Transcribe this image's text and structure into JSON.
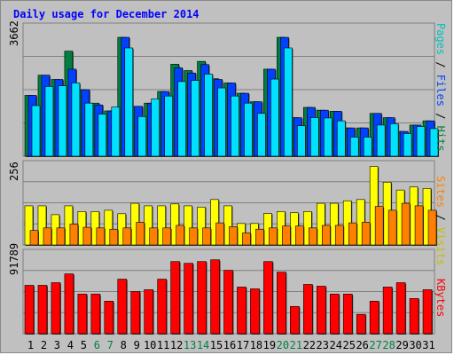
{
  "chart_data": {
    "type": "bar",
    "title": "Daily usage for December 2014",
    "categories": [
      "1",
      "2",
      "3",
      "4",
      "5",
      "6",
      "7",
      "8",
      "9",
      "10",
      "11",
      "12",
      "13",
      "14",
      "15",
      "16",
      "17",
      "18",
      "19",
      "20",
      "21",
      "22",
      "23",
      "24",
      "25",
      "26",
      "27",
      "28",
      "29",
      "30",
      "31"
    ],
    "weekend_days": [
      6,
      7,
      13,
      14,
      20,
      21,
      27,
      28
    ],
    "panels": {
      "top": {
        "max_label": "3662",
        "ymax": 3662,
        "legend": [
          "Pages",
          "/",
          "Files",
          "/",
          "Hits"
        ],
        "series": [
          {
            "name": "Hits",
            "color": "#008040",
            "values": [
              1720,
              2290,
              2170,
              2970,
              1880,
              1500,
              1280,
              3360,
              1410,
              1500,
              1830,
              2600,
              2420,
              2680,
              2190,
              2070,
              1780,
              1540,
              2460,
              3360,
              1090,
              1380,
              1300,
              1270,
              800,
              800,
              1210,
              1090,
              700,
              880,
              1000
            ]
          },
          {
            "name": "Files",
            "color": "#0040ff",
            "values": [
              1720,
              2290,
              2170,
              2460,
              1880,
              1450,
              1280,
              3360,
              1410,
              1500,
              1830,
              2500,
              2350,
              2590,
              2170,
              2070,
              1780,
              1540,
              2460,
              3360,
              1090,
              1380,
              1300,
              1270,
              800,
              800,
              1210,
              1090,
              700,
              880,
              1000
            ]
          },
          {
            "name": "Pages",
            "color": "#00e0ff",
            "values": [
              1430,
              1970,
              1990,
              2070,
              1500,
              1190,
              1390,
              3060,
              1120,
              1620,
              1700,
              2110,
              2140,
              2320,
              1930,
              1700,
              1500,
              1210,
              2180,
              3060,
              860,
              1090,
              1080,
              1000,
              540,
              540,
              880,
              920,
              640,
              840,
              780
            ]
          }
        ]
      },
      "middle": {
        "max_label": "256",
        "ymax": 256,
        "legend": [
          "Sites",
          "/",
          "Visits"
        ],
        "series": [
          {
            "name": "Visits",
            "color": "#ffff00",
            "values": [
              124,
              124,
              96,
              124,
              106,
              106,
              110,
              99,
              132,
              124,
              124,
              130,
              124,
              120,
              144,
              124,
              68,
              68,
              100,
              106,
              102,
              106,
              132,
              132,
              140,
              144,
              249,
              199,
              174,
              184,
              179
            ]
          },
          {
            "name": "Sites",
            "color": "#ff8000",
            "values": [
              46,
              54,
              54,
              66,
              56,
              54,
              50,
              54,
              72,
              54,
              54,
              62,
              54,
              54,
              70,
              58,
              38,
              50,
              54,
              60,
              60,
              54,
              62,
              62,
              70,
              72,
              122,
              110,
              132,
              124,
              110
            ]
          }
        ]
      },
      "bottom": {
        "max_label": "91789",
        "ymax": 91789,
        "legend": [
          "KBytes"
        ],
        "series": [
          {
            "name": "KBytes",
            "color": "#ff0000",
            "values": [
              55000,
              55000,
              58000,
              68000,
              45000,
              45000,
              37000,
              62000,
              48000,
              50000,
              62000,
              82000,
              80000,
              82000,
              84000,
              72000,
              53000,
              51000,
              82000,
              70000,
              31000,
              56000,
              54000,
              45000,
              45000,
              22000,
              37000,
              53000,
              58000,
              40000,
              50000
            ]
          }
        ]
      }
    }
  }
}
